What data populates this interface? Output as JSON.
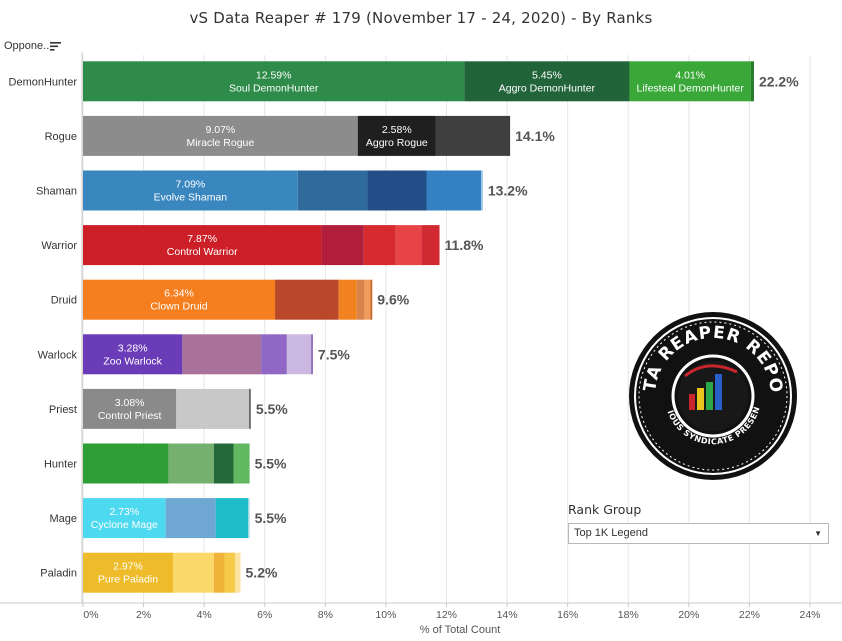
{
  "page": {
    "title": "vS Data Reaper #  179 (November 17 - 24, 2020) - By Ranks",
    "column_header": "Oppone..",
    "x_axis_title": "% of Total Count"
  },
  "filter": {
    "title": "Rank Group",
    "selected": "Top 1K Legend"
  },
  "logo": {
    "main_text": "DATA REAPER REPORT",
    "sub_text": "VICIOUS SYNDICATE PRESENTS"
  },
  "chart_data": {
    "type": "bar",
    "orientation": "horizontal",
    "stacked": true,
    "xlabel": "% of Total Count",
    "ylabel": "",
    "xlim": [
      0,
      24
    ],
    "x_ticks": [
      "0%",
      "2%",
      "4%",
      "6%",
      "8%",
      "10%",
      "12%",
      "14%",
      "16%",
      "18%",
      "20%",
      "22%",
      "24%"
    ],
    "rows": [
      {
        "class": "DemonHunter",
        "total": "22.2%",
        "segments": [
          {
            "value": 12.59,
            "name": "Soul DemonHunter",
            "pct": "12.59%",
            "color": "#2e8b4a"
          },
          {
            "value": 5.45,
            "name": "Aggro DemonHunter",
            "pct": "5.45%",
            "color": "#22643a"
          },
          {
            "value": 4.01,
            "name": "Lifesteal DemonHunter",
            "pct": "4.01%",
            "color": "#3aa838"
          },
          {
            "value": 0.1,
            "color": "#2a7a2a"
          }
        ]
      },
      {
        "class": "Rogue",
        "total": "14.1%",
        "segments": [
          {
            "value": 9.07,
            "name": "Miracle Rogue",
            "pct": "9.07%",
            "color": "#8c8c8c"
          },
          {
            "value": 2.58,
            "name": "Aggro Rogue",
            "pct": "2.58%",
            "color": "#1f1f1f"
          },
          {
            "value": 2.45,
            "color": "#3f3f3f"
          }
        ]
      },
      {
        "class": "Shaman",
        "total": "13.2%",
        "segments": [
          {
            "value": 7.09,
            "name": "Evolve Shaman",
            "pct": "7.09%",
            "color": "#3a87c0"
          },
          {
            "value": 2.3,
            "color": "#2f6a9c"
          },
          {
            "value": 1.95,
            "color": "#224d86"
          },
          {
            "value": 1.8,
            "color": "#3480c2"
          },
          {
            "value": 0.06,
            "color": "#9cc4e2"
          }
        ]
      },
      {
        "class": "Warrior",
        "total": "11.8%",
        "segments": [
          {
            "value": 7.87,
            "name": "Control Warrior",
            "pct": "7.87%",
            "color": "#cc1f27"
          },
          {
            "value": 1.4,
            "color": "#b01e3c"
          },
          {
            "value": 1.05,
            "color": "#d62a2f"
          },
          {
            "value": 0.85,
            "color": "#e84448"
          },
          {
            "value": 0.6,
            "color": "#d12a33"
          }
        ]
      },
      {
        "class": "Druid",
        "total": "9.6%",
        "segments": [
          {
            "value": 6.34,
            "name": "Clown Druid",
            "pct": "6.34%",
            "color": "#f57f1f"
          },
          {
            "value": 2.1,
            "color": "#b9482a"
          },
          {
            "value": 0.6,
            "color": "#f2821f"
          },
          {
            "value": 0.25,
            "color": "#d7834a"
          },
          {
            "value": 0.2,
            "color": "#f09d5c"
          },
          {
            "value": 0.06,
            "color": "#c46a30"
          }
        ]
      },
      {
        "class": "Warlock",
        "total": "7.5%",
        "segments": [
          {
            "value": 3.28,
            "name": "Zoo Warlock",
            "pct": "3.28%",
            "color": "#6a3cb8"
          },
          {
            "value": 2.6,
            "color": "#a9729b"
          },
          {
            "value": 0.85,
            "color": "#9067c4"
          },
          {
            "value": 0.8,
            "color": "#cbb8e1"
          },
          {
            "value": 0.06,
            "color": "#8a6ab8"
          }
        ]
      },
      {
        "class": "Priest",
        "total": "5.5%",
        "segments": [
          {
            "value": 3.08,
            "name": "Control Priest",
            "pct": "3.08%",
            "color": "#8a8a8a"
          },
          {
            "value": 2.4,
            "color": "#c8c8c8"
          },
          {
            "value": 0.06,
            "color": "#6a6a6a"
          }
        ]
      },
      {
        "class": "Hunter",
        "total": "5.5%",
        "segments": [
          {
            "value": 2.82,
            "color": "#2e9e37"
          },
          {
            "value": 1.5,
            "color": "#76b06e"
          },
          {
            "value": 0.65,
            "color": "#226a3a"
          },
          {
            "value": 0.53,
            "color": "#62b860"
          }
        ]
      },
      {
        "class": "Mage",
        "total": "5.5%",
        "segments": [
          {
            "value": 2.73,
            "name": "Cyclone Mage",
            "pct": "2.73%",
            "color": "#4dd9ef"
          },
          {
            "value": 1.65,
            "color": "#6ea7d2"
          },
          {
            "value": 1.07,
            "color": "#1fbccc"
          },
          {
            "value": 0.05,
            "color": "#9fd8e4"
          }
        ]
      },
      {
        "class": "Paladin",
        "total": "5.2%",
        "segments": [
          {
            "value": 2.97,
            "name": "Pure Paladin",
            "pct": "2.97%",
            "color": "#eebc2a"
          },
          {
            "value": 1.35,
            "color": "#fbd86a"
          },
          {
            "value": 0.35,
            "color": "#f2b33a"
          },
          {
            "value": 0.35,
            "color": "#f6cb4a"
          },
          {
            "value": 0.18,
            "color": "#fde3a2"
          }
        ]
      }
    ]
  }
}
